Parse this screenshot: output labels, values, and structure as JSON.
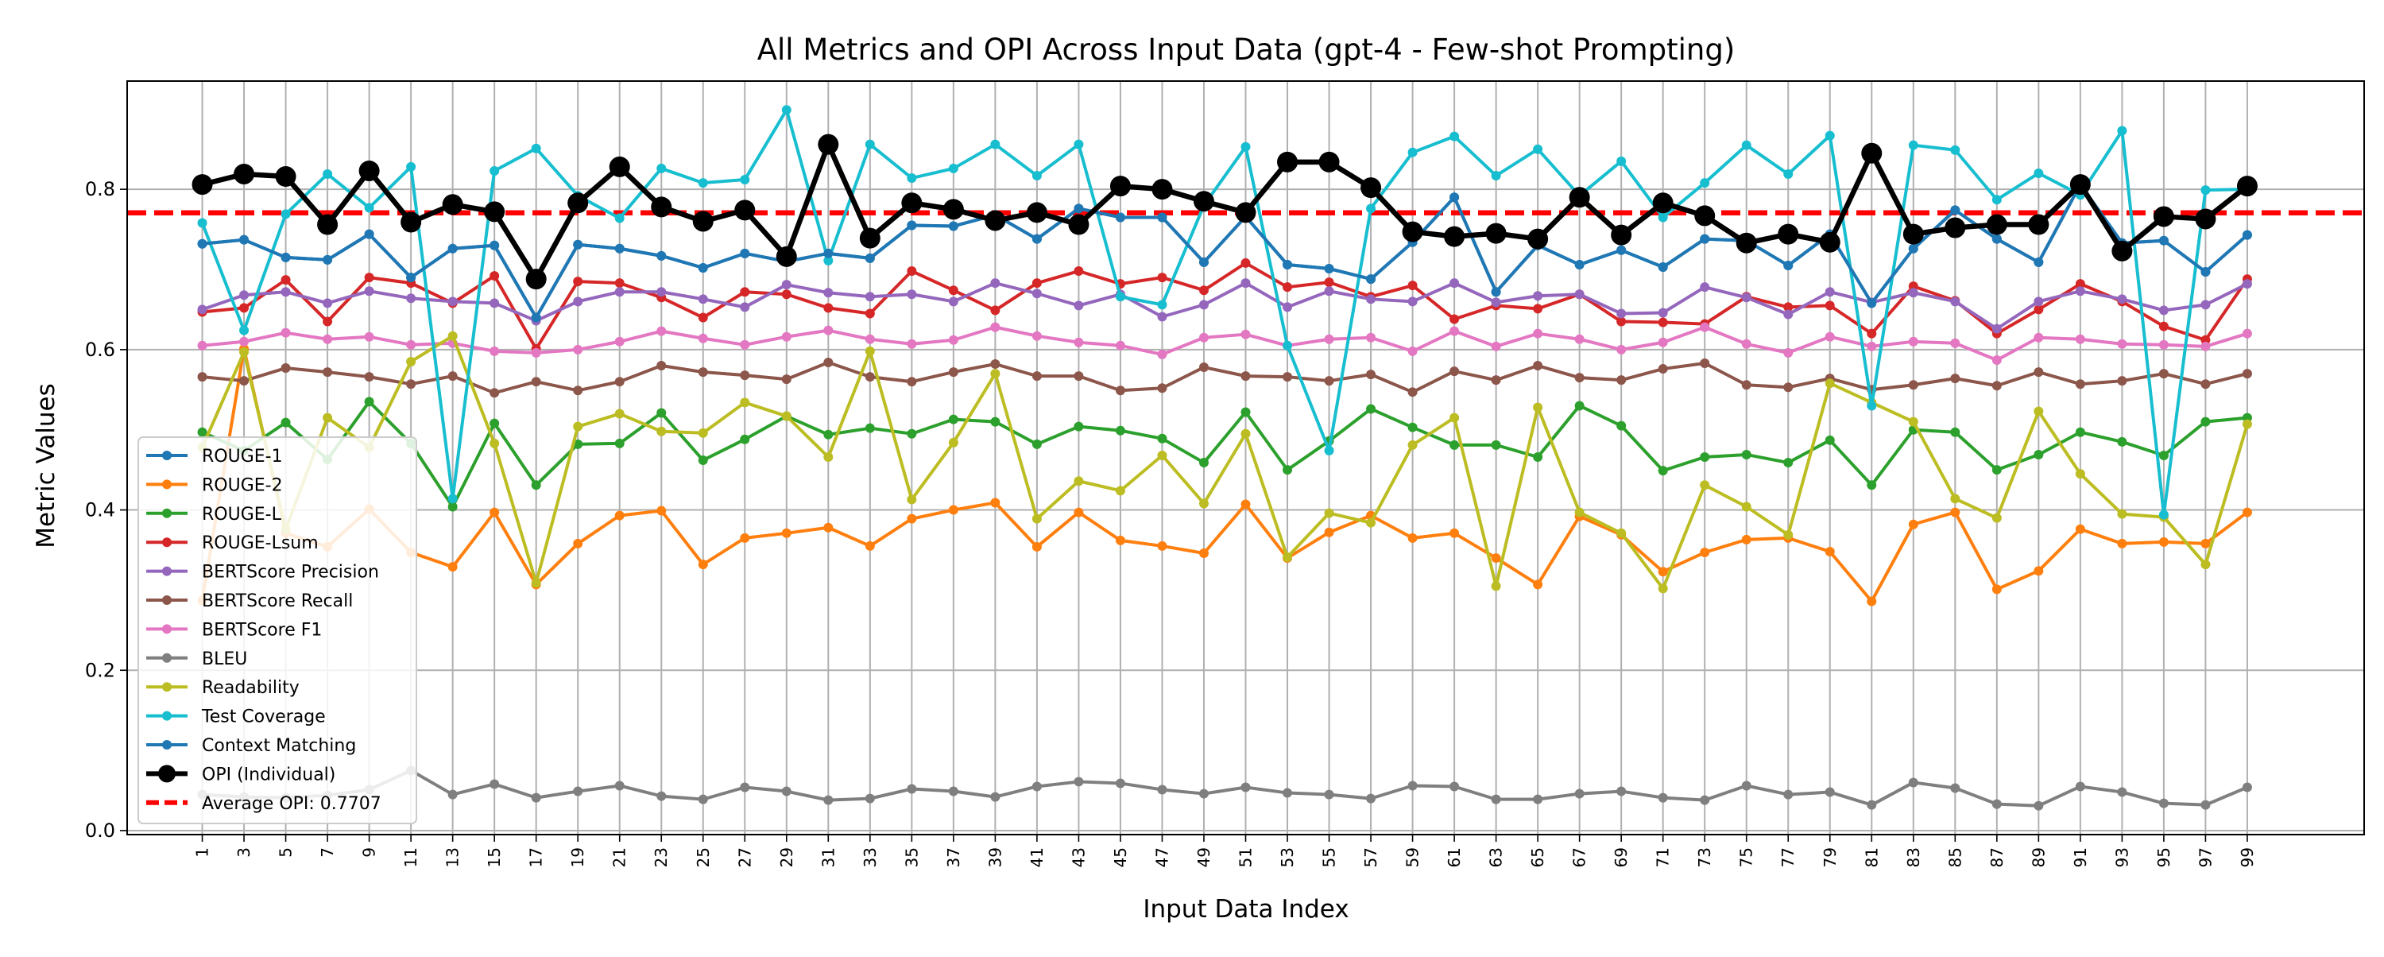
{
  "chart_data": {
    "type": "line",
    "title": "All Metrics and OPI Across Input Data (gpt-4 - Few-shot Prompting)",
    "xlabel": "Input Data Index",
    "ylabel": "Metric Values",
    "xlim": [
      -2.6,
      104.6
    ],
    "ylim": [
      -0.005,
      0.935
    ],
    "x_ticks": [
      1,
      3,
      5,
      7,
      9,
      11,
      13,
      15,
      17,
      19,
      21,
      23,
      25,
      27,
      29,
      31,
      33,
      35,
      37,
      39,
      41,
      43,
      45,
      47,
      49,
      51,
      53,
      55,
      57,
      59,
      61,
      63,
      65,
      67,
      69,
      71,
      73,
      75,
      77,
      79,
      81,
      83,
      85,
      87,
      89,
      91,
      93,
      95,
      97,
      99
    ],
    "y_ticks": [
      0.0,
      0.2,
      0.4,
      0.6,
      0.8
    ],
    "y_tick_labels": [
      "0.0",
      "0.2",
      "0.4",
      "0.6",
      "0.8"
    ],
    "grid": true,
    "legend_position": "lower-left",
    "x": [
      1,
      3,
      5,
      7,
      9,
      11,
      13,
      15,
      17,
      19,
      21,
      23,
      25,
      27,
      29,
      31,
      33,
      35,
      37,
      39,
      41,
      43,
      45,
      47,
      49,
      51,
      53,
      55,
      57,
      59,
      61,
      63,
      65,
      67,
      69,
      71,
      73,
      75,
      77,
      79,
      81,
      83,
      85,
      87,
      89,
      91,
      93,
      95,
      97,
      99
    ],
    "series": [
      {
        "name": "ROUGE-1",
        "color": "#1f77b4",
        "values": [
          0.732,
          0.737,
          0.715,
          0.712,
          0.744,
          0.69,
          0.726,
          0.73,
          0.64,
          0.731,
          0.726,
          0.717,
          0.702,
          0.72,
          0.71,
          0.72,
          0.714,
          0.755,
          0.754,
          0.768,
          0.738,
          0.776,
          0.765,
          0.765,
          0.709,
          0.766,
          0.706,
          0.701,
          0.688,
          0.734,
          0.79,
          0.672,
          0.73,
          0.706,
          0.724,
          0.703,
          0.738,
          0.736,
          0.705,
          0.744,
          0.658,
          0.726,
          0.774,
          0.738,
          0.709,
          0.806,
          0.733,
          0.736,
          0.697,
          0.743
        ]
      },
      {
        "name": "ROUGE-2",
        "color": "#ff7f0e",
        "values": [
          0.287,
          0.601,
          0.371,
          0.354,
          0.401,
          0.347,
          0.329,
          0.397,
          0.307,
          0.358,
          0.393,
          0.399,
          0.332,
          0.365,
          0.371,
          0.378,
          0.355,
          0.389,
          0.4,
          0.409,
          0.354,
          0.397,
          0.362,
          0.355,
          0.346,
          0.407,
          0.34,
          0.372,
          0.393,
          0.365,
          0.371,
          0.34,
          0.307,
          0.392,
          0.369,
          0.323,
          0.347,
          0.363,
          0.365,
          0.348,
          0.286,
          0.382,
          0.397,
          0.301,
          0.324,
          0.376,
          0.358,
          0.36,
          0.358,
          0.397
        ]
      },
      {
        "name": "ROUGE-L",
        "color": "#2ca02c",
        "values": [
          0.497,
          0.474,
          0.509,
          0.463,
          0.535,
          0.483,
          0.404,
          0.508,
          0.431,
          0.482,
          0.483,
          0.521,
          0.462,
          0.488,
          0.517,
          0.494,
          0.502,
          0.495,
          0.513,
          0.51,
          0.482,
          0.504,
          0.499,
          0.489,
          0.459,
          0.522,
          0.45,
          0.486,
          0.526,
          0.503,
          0.481,
          0.481,
          0.466,
          0.53,
          0.505,
          0.449,
          0.466,
          0.469,
          0.459,
          0.487,
          0.431,
          0.5,
          0.497,
          0.45,
          0.469,
          0.497,
          0.485,
          0.468,
          0.51,
          0.515
        ]
      },
      {
        "name": "ROUGE-Lsum",
        "color": "#d62728",
        "values": [
          0.647,
          0.652,
          0.687,
          0.635,
          0.69,
          0.683,
          0.658,
          0.692,
          0.601,
          0.685,
          0.683,
          0.665,
          0.64,
          0.672,
          0.669,
          0.652,
          0.645,
          0.698,
          0.674,
          0.649,
          0.683,
          0.698,
          0.682,
          0.69,
          0.674,
          0.708,
          0.678,
          0.684,
          0.666,
          0.68,
          0.638,
          0.655,
          0.651,
          0.669,
          0.635,
          0.634,
          0.632,
          0.666,
          0.653,
          0.655,
          0.62,
          0.679,
          0.661,
          0.62,
          0.65,
          0.682,
          0.66,
          0.629,
          0.612,
          0.688
        ]
      },
      {
        "name": "BERTScore Precision",
        "color": "#9467bd",
        "values": [
          0.65,
          0.668,
          0.672,
          0.658,
          0.673,
          0.664,
          0.66,
          0.658,
          0.636,
          0.66,
          0.672,
          0.672,
          0.663,
          0.653,
          0.681,
          0.671,
          0.666,
          0.669,
          0.66,
          0.683,
          0.67,
          0.655,
          0.669,
          0.641,
          0.656,
          0.683,
          0.653,
          0.673,
          0.663,
          0.66,
          0.683,
          0.659,
          0.667,
          0.669,
          0.645,
          0.646,
          0.678,
          0.665,
          0.644,
          0.672,
          0.659,
          0.671,
          0.66,
          0.626,
          0.66,
          0.673,
          0.663,
          0.649,
          0.656,
          0.682
        ]
      },
      {
        "name": "BERTScore Recall",
        "color": "#8c564b",
        "values": [
          0.566,
          0.561,
          0.577,
          0.572,
          0.566,
          0.557,
          0.567,
          0.546,
          0.56,
          0.549,
          0.56,
          0.58,
          0.572,
          0.568,
          0.563,
          0.584,
          0.566,
          0.56,
          0.572,
          0.582,
          0.567,
          0.567,
          0.549,
          0.552,
          0.578,
          0.567,
          0.566,
          0.561,
          0.569,
          0.547,
          0.573,
          0.562,
          0.58,
          0.565,
          0.562,
          0.576,
          0.583,
          0.556,
          0.553,
          0.564,
          0.55,
          0.556,
          0.564,
          0.555,
          0.572,
          0.557,
          0.561,
          0.57,
          0.557,
          0.57
        ]
      },
      {
        "name": "BERTScore F1",
        "color": "#e377c2",
        "values": [
          0.605,
          0.61,
          0.621,
          0.613,
          0.616,
          0.606,
          0.608,
          0.598,
          0.596,
          0.6,
          0.61,
          0.623,
          0.614,
          0.606,
          0.616,
          0.624,
          0.613,
          0.607,
          0.612,
          0.628,
          0.617,
          0.609,
          0.605,
          0.594,
          0.615,
          0.619,
          0.605,
          0.613,
          0.615,
          0.598,
          0.623,
          0.604,
          0.62,
          0.613,
          0.6,
          0.609,
          0.628,
          0.607,
          0.596,
          0.616,
          0.604,
          0.61,
          0.608,
          0.587,
          0.615,
          0.613,
          0.607,
          0.606,
          0.604,
          0.62
        ]
      },
      {
        "name": "BLEU",
        "color": "#7f7f7f",
        "values": [
          0.045,
          0.042,
          0.041,
          0.044,
          0.051,
          0.075,
          0.045,
          0.058,
          0.041,
          0.049,
          0.056,
          0.043,
          0.039,
          0.054,
          0.049,
          0.038,
          0.04,
          0.052,
          0.049,
          0.042,
          0.055,
          0.061,
          0.059,
          0.051,
          0.046,
          0.054,
          0.047,
          0.045,
          0.04,
          0.056,
          0.055,
          0.039,
          0.039,
          0.046,
          0.049,
          0.041,
          0.038,
          0.056,
          0.045,
          0.048,
          0.032,
          0.06,
          0.053,
          0.033,
          0.031,
          0.055,
          0.048,
          0.034,
          0.032,
          0.054
        ]
      },
      {
        "name": "Readability",
        "color": "#bcbd22",
        "values": [
          0.478,
          0.597,
          0.376,
          0.515,
          0.478,
          0.585,
          0.617,
          0.483,
          0.309,
          0.504,
          0.52,
          0.498,
          0.496,
          0.534,
          0.517,
          0.466,
          0.598,
          0.413,
          0.484,
          0.57,
          0.389,
          0.436,
          0.424,
          0.468,
          0.408,
          0.495,
          0.341,
          0.396,
          0.384,
          0.481,
          0.515,
          0.305,
          0.528,
          0.397,
          0.371,
          0.302,
          0.431,
          0.404,
          0.369,
          0.558,
          0.534,
          0.51,
          0.414,
          0.39,
          0.523,
          0.445,
          0.395,
          0.391,
          0.332,
          0.507
        ]
      },
      {
        "name": "Test Coverage",
        "color": "#17becf",
        "values": [
          0.758,
          0.624,
          0.769,
          0.819,
          0.777,
          0.828,
          0.414,
          0.823,
          0.851,
          0.792,
          0.764,
          0.826,
          0.808,
          0.812,
          0.899,
          0.711,
          0.856,
          0.814,
          0.826,
          0.856,
          0.817,
          0.856,
          0.666,
          0.656,
          0.78,
          0.853,
          0.605,
          0.474,
          0.776,
          0.846,
          0.866,
          0.817,
          0.85,
          0.792,
          0.835,
          0.765,
          0.808,
          0.855,
          0.819,
          0.867,
          0.53,
          0.855,
          0.849,
          0.787,
          0.82,
          0.793,
          0.873,
          0.394,
          0.799,
          0.8
        ]
      },
      {
        "name": "Context Matching",
        "color": "#1f77b4",
        "values": [
          0.732,
          0.737,
          0.715,
          0.712,
          0.744,
          0.69,
          0.726,
          0.73,
          0.64,
          0.731,
          0.726,
          0.717,
          0.702,
          0.72,
          0.71,
          0.72,
          0.714,
          0.755,
          0.754,
          0.768,
          0.738,
          0.776,
          0.765,
          0.765,
          0.709,
          0.766,
          0.706,
          0.701,
          0.688,
          0.734,
          0.79,
          0.672,
          0.73,
          0.706,
          0.724,
          0.703,
          0.738,
          0.736,
          0.705,
          0.744,
          0.658,
          0.726,
          0.774,
          0.738,
          0.709,
          0.806,
          0.733,
          0.736,
          0.697,
          0.743
        ]
      },
      {
        "name": "OPI (Individual)",
        "color": "#000000",
        "emphasis": true,
        "values": [
          0.806,
          0.819,
          0.816,
          0.756,
          0.823,
          0.759,
          0.781,
          0.772,
          0.688,
          0.783,
          0.828,
          0.778,
          0.76,
          0.774,
          0.716,
          0.856,
          0.739,
          0.783,
          0.775,
          0.761,
          0.771,
          0.756,
          0.804,
          0.8,
          0.785,
          0.771,
          0.834,
          0.834,
          0.802,
          0.747,
          0.741,
          0.745,
          0.738,
          0.79,
          0.743,
          0.783,
          0.767,
          0.733,
          0.744,
          0.734,
          0.845,
          0.744,
          0.752,
          0.756,
          0.756,
          0.806,
          0.723,
          0.766,
          0.763,
          0.804
        ]
      }
    ],
    "reference_line": {
      "name": "Average OPI: 0.7707",
      "value": 0.7707,
      "color": "#ff0000",
      "style": "dashed"
    }
  }
}
